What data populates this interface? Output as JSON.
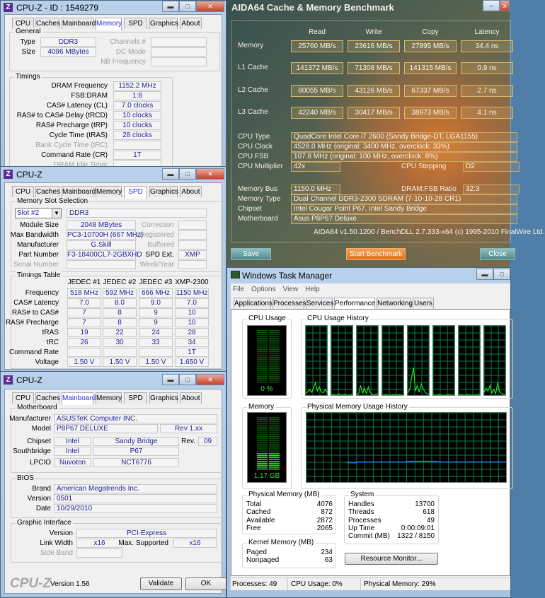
{
  "cpuz_memory": {
    "title": "CPU-Z - ID : 1549279",
    "tabs": [
      "CPU",
      "Caches",
      "Mainboard",
      "Memory",
      "SPD",
      "Graphics",
      "About"
    ],
    "active_tab": "Memory",
    "general_label": "General",
    "type_label": "Type",
    "type": "DDR3",
    "size_label": "Size",
    "size": "4096 MBytes",
    "channels_label": "Channels #",
    "dc_mode_label": "DC Mode",
    "nb_freq_label": "NB Frequency",
    "timings_label": "Timings",
    "timings": [
      {
        "label": "DRAM Frequency",
        "value": "1152.2 MHz"
      },
      {
        "label": "FSB:DRAM",
        "value": "1:8"
      },
      {
        "label": "CAS# Latency (CL)",
        "value": "7.0 clocks"
      },
      {
        "label": "RAS# to CAS# Delay (tRCD)",
        "value": "10 clocks"
      },
      {
        "label": "RAS# Precharge (tRP)",
        "value": "10 clocks"
      },
      {
        "label": "Cycle Time (tRAS)",
        "value": "28 clocks"
      },
      {
        "label": "Bank Cycle Time (tRC)",
        "value": "",
        "disabled": true
      },
      {
        "label": "Command Rate (CR)",
        "value": "1T"
      },
      {
        "label": "DRAM Idle Timer",
        "value": "",
        "disabled": true
      }
    ]
  },
  "cpuz_spd": {
    "title": "CPU-Z",
    "tabs": [
      "CPU",
      "Caches",
      "Mainboard",
      "Memory",
      "SPD",
      "Graphics",
      "About"
    ],
    "active_tab": "SPD",
    "slot_group_label": "Memory Slot Selection",
    "slot": "Slot #2",
    "mem_type": "DDR3",
    "left_rows": [
      {
        "label": "Module Size",
        "value": "2048 MBytes"
      },
      {
        "label": "Max Bandwidth",
        "value": "PC3-10700H (667 MHz)"
      },
      {
        "label": "Manufacturer",
        "value": "G.Skill"
      },
      {
        "label": "Part Number",
        "value": "F3-18400CL7-2GBXHD"
      },
      {
        "label": "Serial Number",
        "value": "",
        "disabled": true
      }
    ],
    "right_rows": [
      {
        "label": "Correction",
        "value": "",
        "disabled": true
      },
      {
        "label": "Registered",
        "value": "",
        "disabled": true
      },
      {
        "label": "Buffered",
        "value": "",
        "disabled": true
      },
      {
        "label": "SPD Ext.",
        "value": "XMP"
      },
      {
        "label": "Week/Year",
        "value": "",
        "disabled": true
      }
    ],
    "timings_table_label": "Timings Table",
    "columns": [
      "JEDEC #1",
      "JEDEC #2",
      "JEDEC #3",
      "XMP-2300"
    ],
    "rows": [
      {
        "label": "Frequency",
        "values": [
          "518 MHz",
          "592 MHz",
          "666 MHz",
          "1150 MHz"
        ]
      },
      {
        "label": "CAS# Latency",
        "values": [
          "7.0",
          "8.0",
          "9.0",
          "7.0"
        ]
      },
      {
        "label": "RAS# to CAS#",
        "values": [
          "7",
          "8",
          "9",
          "10"
        ]
      },
      {
        "label": "RAS# Precharge",
        "values": [
          "7",
          "8",
          "9",
          "10"
        ]
      },
      {
        "label": "tRAS",
        "values": [
          "19",
          "22",
          "24",
          "28"
        ]
      },
      {
        "label": "tRC",
        "values": [
          "26",
          "30",
          "33",
          "34"
        ]
      },
      {
        "label": "Command Rate",
        "values": [
          "",
          "",
          "",
          "1T"
        ]
      },
      {
        "label": "Voltage",
        "values": [
          "1.50 V",
          "1.50 V",
          "1.50 V",
          "1.650 V"
        ]
      }
    ]
  },
  "cpuz_mainboard": {
    "title": "CPU-Z",
    "tabs": [
      "CPU",
      "Caches",
      "Mainboard",
      "Memory",
      "SPD",
      "Graphics",
      "About"
    ],
    "active_tab": "Mainboard",
    "mb_group_label": "Motherboard",
    "manufacturer_label": "Manufacturer",
    "manufacturer": "ASUSTeK Computer INC.",
    "model_label": "Model",
    "model": "P8P67 DELUXE",
    "model_rev": "Rev 1.xx",
    "chipset_label": "Chipset",
    "chipset_vendor": "Intel",
    "chipset_name": "Sandy Bridge",
    "rev_label": "Rev.",
    "rev": "09",
    "southbridge_label": "Southbridge",
    "sb_vendor": "Intel",
    "sb_name": "P67",
    "lpcio_label": "LPCIO",
    "lpcio_vendor": "Nuvoton",
    "lpcio_name": "NCT6776",
    "bios_group_label": "BIOS",
    "brand_label": "Brand",
    "brand": "American Megatrends Inc.",
    "version_label": "Version",
    "version": "0501",
    "date_label": "Date",
    "date": "10/29/2010",
    "gi_group_label": "Graphic Interface",
    "gi_version_label": "Version",
    "gi_version": "PCI-Express",
    "link_width_label": "Link Width",
    "link_width": "x16",
    "max_supported_label": "Max. Supported",
    "max_supported": "x16",
    "side_band_label": "Side Band",
    "logo": "CPU-Z",
    "app_version": "Version 1.56",
    "validate_label": "Validate",
    "ok_label": "OK"
  },
  "aida": {
    "title": "AIDA64 Cache & Memory Benchmark",
    "columns": [
      "Read",
      "Write",
      "Copy",
      "Latency"
    ],
    "rows": [
      {
        "label": "Memory",
        "values": [
          "25760 MB/s",
          "23616 MB/s",
          "27895 MB/s",
          "34.4 ns"
        ]
      },
      {
        "label": "L1 Cache",
        "values": [
          "141372 MB/s",
          "71308 MB/s",
          "141315 MB/s",
          "0.9 ns"
        ]
      },
      {
        "label": "L2 Cache",
        "values": [
          "80055 MB/s",
          "43126 MB/s",
          "67337 MB/s",
          "2.7 ns"
        ]
      },
      {
        "label": "L3 Cache",
        "values": [
          "42240 MB/s",
          "30417 MB/s",
          "38973 MB/s",
          "4.1 ns"
        ]
      }
    ],
    "cpu_type_label": "CPU Type",
    "cpu_type": "QuadCore Intel Core i7 2600  (Sandy Bridge-DT, LGA1155)",
    "cpu_clock_label": "CPU Clock",
    "cpu_clock": "4528.0 MHz  (original: 3400 MHz, overclock: 33%)",
    "cpu_fsb_label": "CPU FSB",
    "cpu_fsb": "107.8 MHz  (original: 100 MHz, overclock: 8%)",
    "cpu_mult_label": "CPU Multiplier",
    "cpu_mult": "42x",
    "cpu_stepping_label": "CPU Stepping",
    "cpu_stepping": "D2",
    "mem_bus_label": "Memory Bus",
    "mem_bus": "1150.0 MHz",
    "dram_fsb_label": "DRAM:FSB Ratio",
    "dram_fsb": "32:3",
    "mem_type_label": "Memory Type",
    "mem_type": "Dual Channel DDR3-2300 SDRAM  (7-10-10-28 CR1)",
    "chipset_label": "Chipset",
    "chipset": "Intel Cougar Point P67, Intel Sandy Bridge",
    "motherboard_label": "Motherboard",
    "motherboard": "Asus P8P67 Deluxe",
    "footer": "AIDA64 v1.50.1200 / BenchDLL 2.7.333-x64  (c) 1995-2010 FinalWire Ltd.",
    "save_label": "Save",
    "start_label": "Start Benchmark",
    "close_label": "Close",
    "accent": "#e8822a"
  },
  "taskmgr": {
    "title": "Windows Task Manager",
    "menu": [
      "File",
      "Options",
      "View",
      "Help"
    ],
    "tabs": [
      "Applications",
      "Processes",
      "Services",
      "Performance",
      "Networking",
      "Users"
    ],
    "active_tab": "Performance",
    "cpu_usage_label": "CPU Usage",
    "cpu_usage": "0 %",
    "cpu_history_label": "CPU Usage History",
    "cpu_history": [
      [
        2,
        5,
        8,
        4,
        10,
        18,
        6,
        12,
        5,
        3,
        8,
        4
      ],
      [
        0,
        1,
        0,
        0,
        2,
        0,
        0,
        1,
        0,
        0,
        0,
        1
      ],
      [
        0,
        2,
        14,
        3,
        10,
        2,
        12,
        4,
        1,
        0,
        2,
        0
      ],
      [
        0,
        0,
        1,
        0,
        0,
        0,
        1,
        0,
        0,
        1,
        0,
        0
      ],
      [
        3,
        8,
        25,
        40,
        6,
        14,
        4,
        16,
        10,
        4,
        2,
        1
      ],
      [
        0,
        0,
        0,
        1,
        0,
        0,
        0,
        0,
        1,
        0,
        0,
        0
      ],
      [
        0,
        1,
        0,
        0,
        0,
        1,
        0,
        0,
        0,
        0,
        1,
        0
      ],
      [
        4,
        10,
        6,
        14,
        3,
        8,
        2,
        18,
        5,
        2,
        1,
        0
      ]
    ],
    "memory_label": "Memory",
    "memory_value": "1.17 GB",
    "memory_fraction": 0.29,
    "mem_history_label": "Physical Memory Usage History",
    "physical_label": "Physical Memory (MB)",
    "physical": [
      {
        "label": "Total",
        "value": "4076"
      },
      {
        "label": "Cached",
        "value": "872"
      },
      {
        "label": "Available",
        "value": "2872"
      },
      {
        "label": "Free",
        "value": "2065"
      }
    ],
    "kernel_label": "Kernel Memory (MB)",
    "kernel": [
      {
        "label": "Paged",
        "value": "234"
      },
      {
        "label": "Nonpaged",
        "value": "63"
      }
    ],
    "system_label": "System",
    "system": [
      {
        "label": "Handles",
        "value": "13700"
      },
      {
        "label": "Threads",
        "value": "618"
      },
      {
        "label": "Processes",
        "value": "49"
      },
      {
        "label": "Up Time",
        "value": "0:00:09:01"
      },
      {
        "label": "Commit (MB)",
        "value": "1322 / 8150"
      }
    ],
    "resource_monitor_label": "Resource Monitor...",
    "status": {
      "processes": "Processes: 49",
      "cpu": "CPU Usage: 0%",
      "memory": "Physical Memory: 29%"
    }
  }
}
